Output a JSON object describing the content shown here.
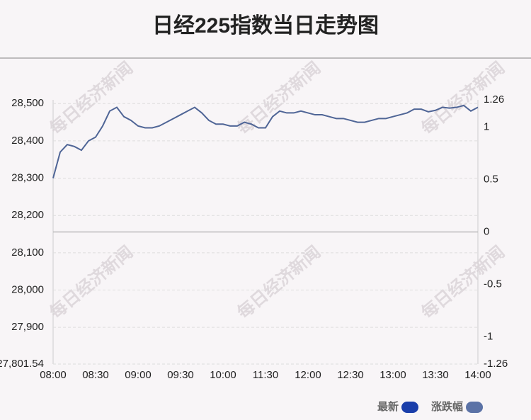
{
  "chart_data": {
    "type": "line",
    "title": "日经225指数当日走势图",
    "watermark": "每日经济新闻",
    "x": [
      "08:00",
      null,
      null,
      null,
      null,
      null,
      "08:30",
      null,
      null,
      null,
      null,
      null,
      "09:00",
      null,
      null,
      null,
      null,
      null,
      "09:30",
      null,
      null,
      null,
      null,
      null,
      "10:00",
      null,
      null,
      null,
      null,
      null,
      "11:30",
      null,
      null,
      null,
      null,
      null,
      "12:00",
      null,
      null,
      null,
      null,
      null,
      "12:30",
      null,
      null,
      null,
      null,
      null,
      "13:00",
      null,
      null,
      null,
      null,
      null,
      "13:30",
      null,
      null,
      null,
      null,
      null,
      "14:00"
    ],
    "series": [
      {
        "name": "最新",
        "color": "#1a3eaa",
        "values": [
          28300,
          28370,
          28390,
          28385,
          28375,
          28400,
          28410,
          28440,
          28480,
          28490,
          28465,
          28455,
          28440,
          28435,
          28435,
          28440,
          28450,
          28460,
          28470,
          28480,
          28490,
          28475,
          28455,
          28445,
          28445,
          28440,
          28440,
          28450,
          28445,
          28435,
          28435,
          28465,
          28480,
          28475,
          28475,
          28480,
          28475,
          28470,
          28470,
          28465,
          28460,
          28460,
          28455,
          28450,
          28450,
          28455,
          28460,
          28460,
          28465,
          28470,
          28475,
          28485,
          28485,
          28478,
          28482,
          28490,
          28488,
          28490,
          28495,
          28480,
          28490
        ]
      },
      {
        "name": "涨跌幅",
        "color": "#5b72a6",
        "axis": "y2"
      }
    ],
    "ylim": [
      27801.54,
      28510
    ],
    "yticks": [
      {
        "value": 27801.54,
        "label": "27,801.54"
      },
      {
        "value": 27900,
        "label": "27,900"
      },
      {
        "value": 28000,
        "label": "28,000"
      },
      {
        "value": 28100,
        "label": "28,100"
      },
      {
        "value": 28200,
        "label": "28,200"
      },
      {
        "value": 28300,
        "label": "28,300"
      },
      {
        "value": 28400,
        "label": "28,400"
      },
      {
        "value": 28500,
        "label": "28,500"
      }
    ],
    "y2lim": [
      -1.26,
      1.26
    ],
    "y2ticks": [
      -1.26,
      -1,
      -0.5,
      0,
      0.5,
      1,
      1.26
    ],
    "grid": true
  }
}
